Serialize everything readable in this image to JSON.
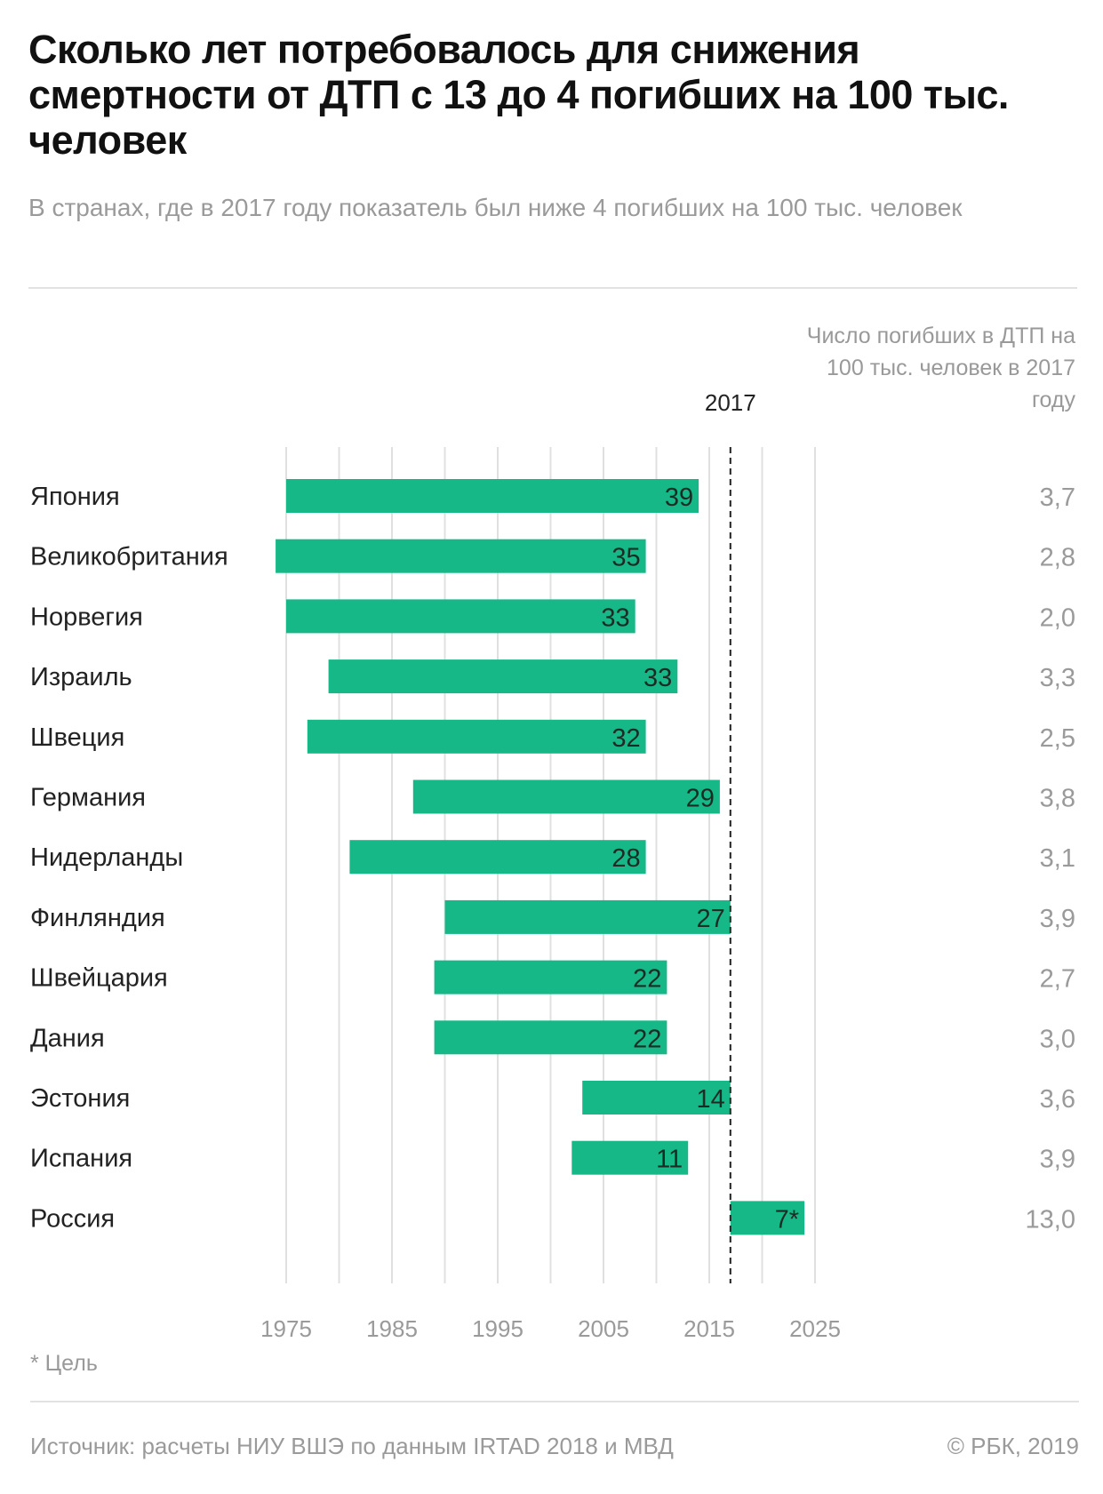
{
  "title": "Сколько лет потребовалось для снижения смертности от ДТП с 13 до 4 погибших на 100 тыс. человек",
  "subtitle": "В странах, где в 2017 году показатель был ниже 4 погибших на 100 тыс. человек",
  "right_column_header": "Число погибших в ДТП на 100 тыс. человек в 2017 году",
  "footnote": "* Цель",
  "source": "Источник: расчеты НИУ ВШЭ по данным IRTAD 2018 и МВД",
  "copyright": "© РБК, 2019",
  "colors": {
    "bar": "#15b886",
    "grid": "#e0e0e0",
    "text_gray": "#999999"
  },
  "chart_data": {
    "type": "bar",
    "orientation": "horizontal-range",
    "title": "Сколько лет потребовалось для снижения смертности от ДТП с 13 до 4 погибших на 100 тыс. человек",
    "xlim": [
      1975,
      2025
    ],
    "x_ticks": [
      "1975",
      "1985",
      "1995",
      "2005",
      "2015",
      "2025"
    ],
    "reference_line": {
      "value": 2017,
      "label": "2017",
      "style": "dashed"
    },
    "grid": true,
    "categories": [
      "Япония",
      "Великобритания",
      "Норвегия",
      "Израиль",
      "Швеция",
      "Германия",
      "Нидерланды",
      "Финляндия",
      "Швейцария",
      "Дания",
      "Эстония",
      "Испания",
      "Россия"
    ],
    "start_year": [
      1975,
      1974,
      1975,
      1979,
      1977,
      1987,
      1981,
      1990,
      1989,
      1989,
      2003,
      2002,
      2017
    ],
    "end_year": [
      2014,
      2009,
      2008,
      2012,
      2009,
      2016,
      2009,
      2017,
      2011,
      2011,
      2017,
      2013,
      2024
    ],
    "labels": [
      "39",
      "35",
      "33",
      "33",
      "32",
      "29",
      "28",
      "27",
      "22",
      "22",
      "14",
      "11",
      "7*"
    ],
    "deaths_2017": [
      "3,7",
      "2,8",
      "2,0",
      "3,3",
      "2,5",
      "3,8",
      "3,1",
      "3,9",
      "2,7",
      "3,0",
      "3,6",
      "3,9",
      "13,0"
    ]
  }
}
